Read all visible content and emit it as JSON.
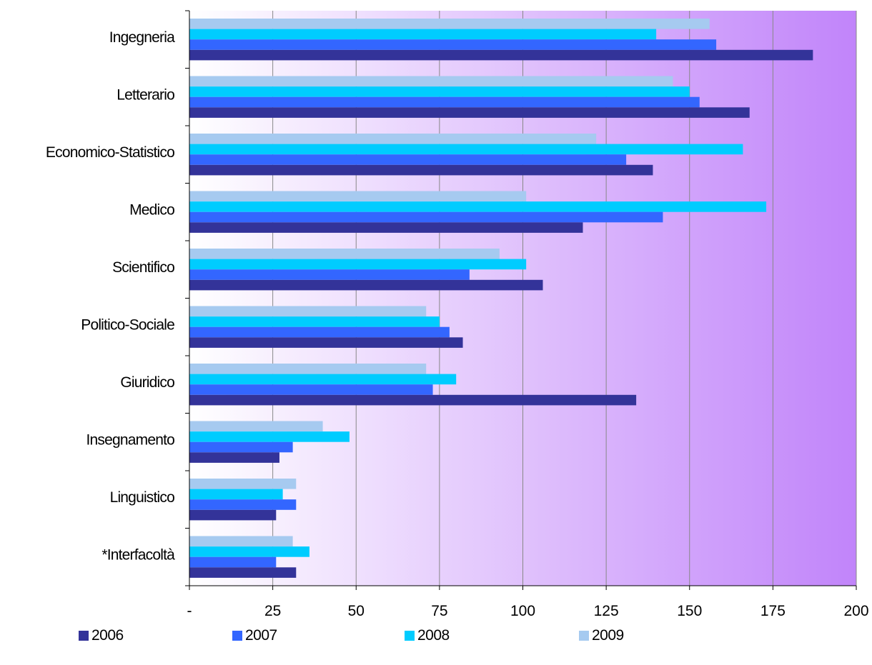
{
  "chart_data": {
    "type": "bar",
    "orientation": "horizontal",
    "title": "",
    "xlabel": "",
    "ylabel": "",
    "xlim": [
      0,
      200
    ],
    "x_ticks": [
      0,
      25,
      50,
      75,
      100,
      125,
      150,
      175,
      200
    ],
    "x_tick_labels": [
      "-",
      "25",
      "50",
      "75",
      "100",
      "125",
      "150",
      "175",
      "200"
    ],
    "grid": "vertical",
    "legend_position": "bottom",
    "categories": [
      "Ingegneria",
      "Letterario",
      "Economico-Statistico",
      "Medico",
      "Scientifico",
      "Politico-Sociale",
      "Giuridico",
      "Insegnamento",
      "Linguistico",
      "*Interfacoltà"
    ],
    "series": [
      {
        "name": "2006",
        "color": "#333399",
        "values": [
          187,
          168,
          139,
          118,
          106,
          82,
          134,
          27,
          26,
          32
        ]
      },
      {
        "name": "2007",
        "color": "#3366ff",
        "values": [
          158,
          153,
          131,
          142,
          84,
          78,
          73,
          31,
          32,
          26
        ]
      },
      {
        "name": "2008",
        "color": "#00ccff",
        "values": [
          140,
          150,
          166,
          173,
          101,
          75,
          80,
          48,
          28,
          36
        ]
      },
      {
        "name": "2009",
        "color": "#a6caf0",
        "values": [
          156,
          145,
          122,
          101,
          93,
          71,
          71,
          40,
          32,
          31
        ]
      }
    ],
    "background_gradient": [
      "#ffffff",
      "#c184fa"
    ]
  }
}
